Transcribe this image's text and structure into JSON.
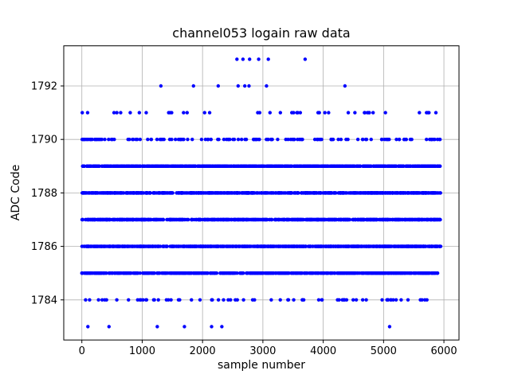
{
  "chart_data": {
    "type": "scatter",
    "title": "channel053 logain raw data",
    "xlabel": "sample number",
    "ylabel": "ADC Code",
    "xlim": [
      -300,
      6250
    ],
    "ylim": [
      1782.5,
      1793.5
    ],
    "xticks": [
      0,
      1000,
      2000,
      3000,
      4000,
      5000,
      6000
    ],
    "yticks": [
      1784,
      1786,
      1788,
      1790,
      1792
    ],
    "grid": true,
    "marker_color": "#0000ff",
    "grid_color": "#b0b0b0",
    "axes_color": "#000000",
    "x_range_of_data": [
      0,
      5950
    ],
    "bands": [
      {
        "adc_code": 1789,
        "approx_count": 800,
        "x_range": [
          0,
          5950
        ],
        "density": "solid"
      },
      {
        "adc_code": 1788,
        "approx_count": 800,
        "x_range": [
          0,
          5950
        ],
        "density": "solid"
      },
      {
        "adc_code": 1787,
        "approx_count": 800,
        "x_range": [
          0,
          5950
        ],
        "density": "solid"
      },
      {
        "adc_code": 1786,
        "approx_count": 750,
        "x_range": [
          0,
          5950
        ],
        "density": "solid"
      },
      {
        "adc_code": 1785,
        "approx_count": 650,
        "x_range": [
          0,
          5950
        ],
        "density": "solid"
      },
      {
        "adc_code": 1790,
        "approx_count": 150,
        "x_range": [
          0,
          5950
        ],
        "density": "dense-with-gaps"
      },
      {
        "adc_code": 1791,
        "approx_count": 42,
        "x_range": [
          0,
          5950
        ],
        "density": "sparse"
      },
      {
        "adc_code": 1784,
        "approx_count": 72,
        "x_range": [
          0,
          5950
        ],
        "density": "sparse"
      }
    ],
    "sparse_points": [
      {
        "adc_code": 1793,
        "x": [
          2570,
          2670,
          2780,
          2930,
          3090,
          3700
        ]
      },
      {
        "adc_code": 1792,
        "x": [
          1310,
          1850,
          2260,
          2590,
          2700,
          2770,
          3060,
          4360
        ]
      },
      {
        "adc_code": 1783,
        "x": [
          100,
          450,
          1250,
          1700,
          2150,
          2320,
          5100
        ]
      }
    ]
  }
}
